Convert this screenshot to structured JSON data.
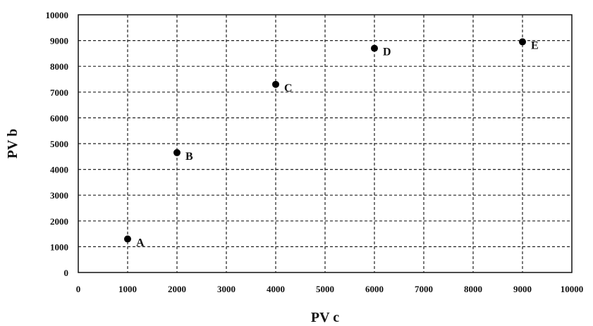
{
  "chart_data": {
    "type": "scatter",
    "xlabel": "PV c",
    "ylabel": "PV b",
    "xlim": [
      0,
      10000
    ],
    "ylim": [
      0,
      10000
    ],
    "xticks": [
      0,
      1000,
      2000,
      3000,
      4000,
      5000,
      6000,
      7000,
      8000,
      9000,
      10000
    ],
    "yticks": [
      0,
      1000,
      2000,
      3000,
      4000,
      5000,
      6000,
      7000,
      8000,
      9000,
      10000
    ],
    "grid": true,
    "points": [
      {
        "label": "A",
        "x": 1000,
        "y": 1300
      },
      {
        "label": "B",
        "x": 2000,
        "y": 4650
      },
      {
        "label": "C",
        "x": 4000,
        "y": 7300
      },
      {
        "label": "D",
        "x": 6000,
        "y": 8700
      },
      {
        "label": "E",
        "x": 9000,
        "y": 8950
      }
    ]
  }
}
